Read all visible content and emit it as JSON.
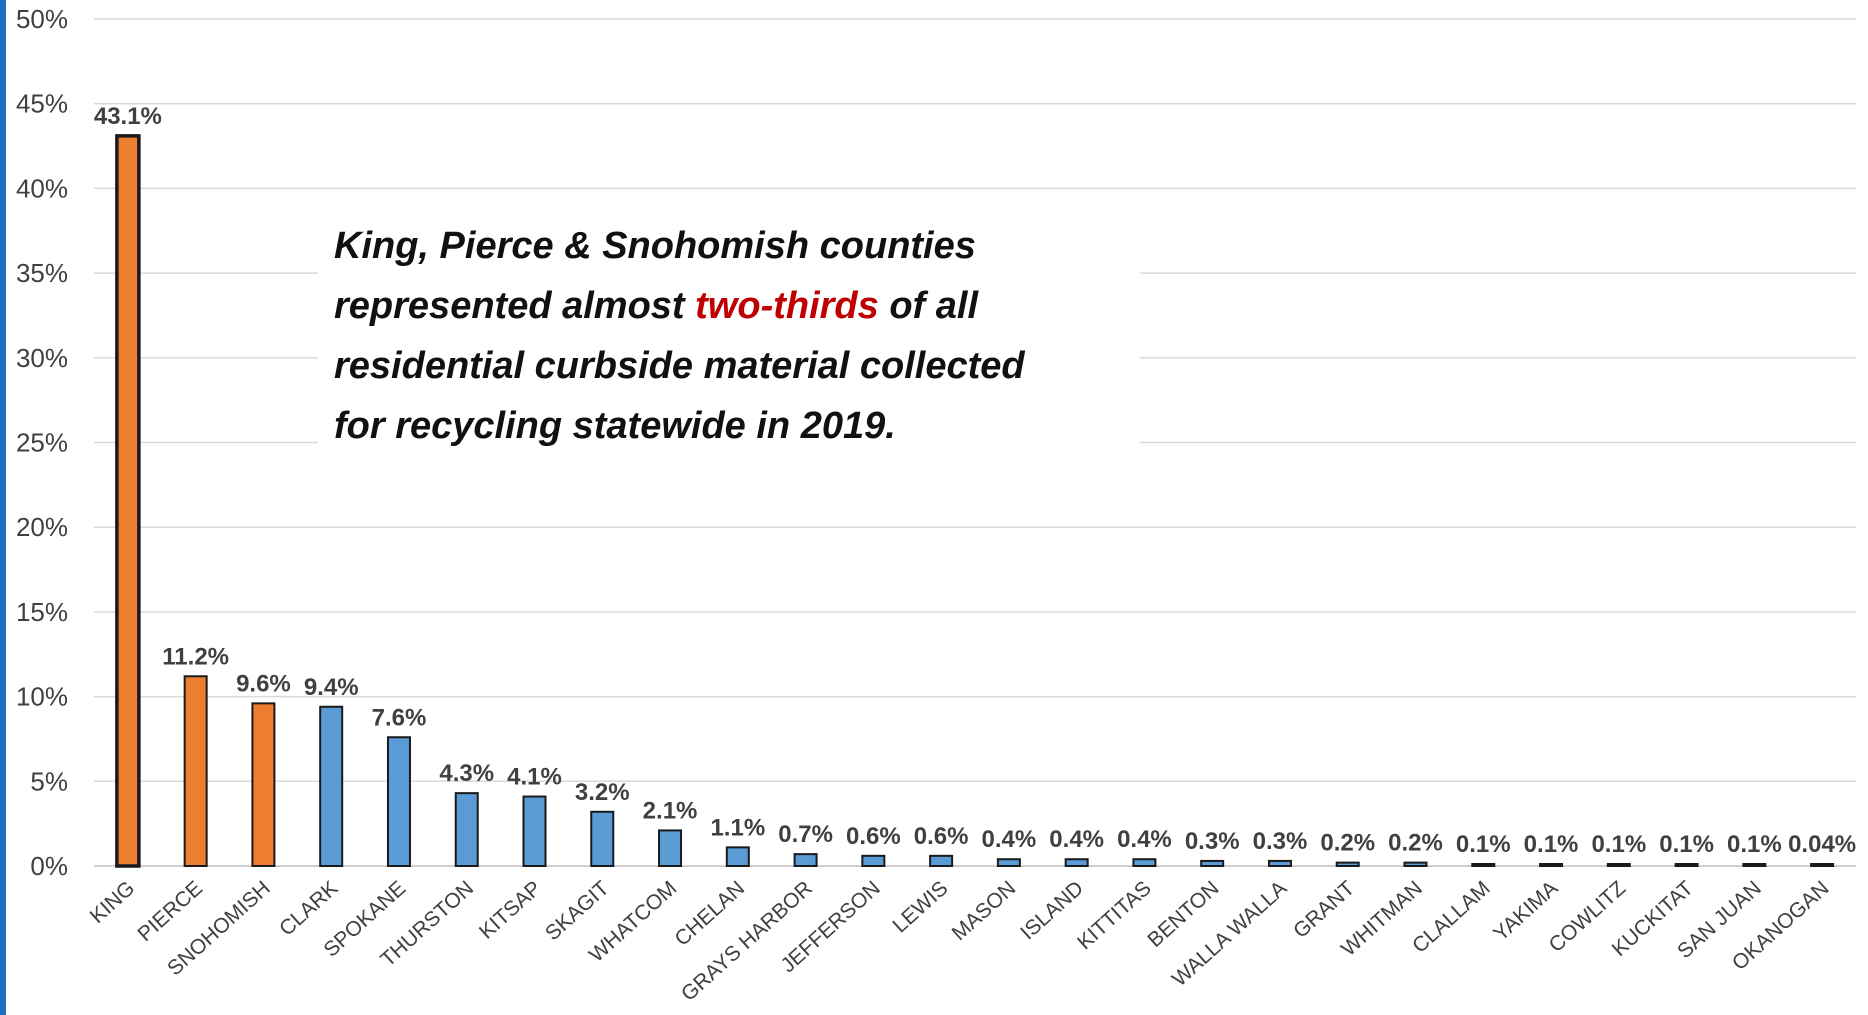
{
  "colors": {
    "highlight": "#ed7d31",
    "normal": "#5b9bd5",
    "outline": "#1a1a1a",
    "grid": "#d9d9d9",
    "accent_text": "#c00000"
  },
  "annotation": {
    "line1": "King, Pierce & Snohomish counties",
    "line2_pre": "represented almost ",
    "line2_em": "two-thirds",
    "line2_post": " of all",
    "line3": "residential curbside material collected",
    "line4": "for recycling statewide in 2019."
  },
  "chart_data": {
    "type": "bar",
    "title": "",
    "xlabel": "",
    "ylabel": "",
    "ylim": [
      0,
      50
    ],
    "yticks": [
      0,
      5,
      10,
      15,
      20,
      25,
      30,
      35,
      40,
      45,
      50
    ],
    "ytick_labels": [
      "0%",
      "5%",
      "10%",
      "15%",
      "20%",
      "25%",
      "30%",
      "35%",
      "40%",
      "45%",
      "50%"
    ],
    "grid": true,
    "legend": "none",
    "categories": [
      "KING",
      "PIERCE",
      "SNOHOMISH",
      "CLARK",
      "SPOKANE",
      "THURSTON",
      "KITSAP",
      "SKAGIT",
      "WHATCOM",
      "CHELAN",
      "GRAYS HARBOR",
      "JEFFERSON",
      "LEWIS",
      "MASON",
      "ISLAND",
      "KITTITAS",
      "BENTON",
      "WALLA WALLA",
      "GRANT",
      "WHITMAN",
      "CLALLAM",
      "YAKIMA",
      "COWLITZ",
      "KUCKITAT",
      "SAN JUAN",
      "OKANOGAN"
    ],
    "values": [
      43.1,
      11.2,
      9.6,
      9.4,
      7.6,
      4.3,
      4.1,
      3.2,
      2.1,
      1.1,
      0.7,
      0.6,
      0.6,
      0.4,
      0.4,
      0.4,
      0.3,
      0.3,
      0.2,
      0.2,
      0.1,
      0.1,
      0.1,
      0.1,
      0.1,
      0.04
    ],
    "labels": [
      "43.1%",
      "11.2%",
      "9.6%",
      "9.4%",
      "7.6%",
      "4.3%",
      "4.1%",
      "3.2%",
      "2.1%",
      "1.1%",
      "0.7%",
      "0.6%",
      "0.6%",
      "0.4%",
      "0.4%",
      "0.4%",
      "0.3%",
      "0.3%",
      "0.2%",
      "0.2%",
      "0.1%",
      "0.1%",
      "0.1%",
      "0.1%",
      "0.1%",
      "0.04%"
    ],
    "highlighted": [
      "KING",
      "PIERCE",
      "SNOHOMISH"
    ]
  }
}
